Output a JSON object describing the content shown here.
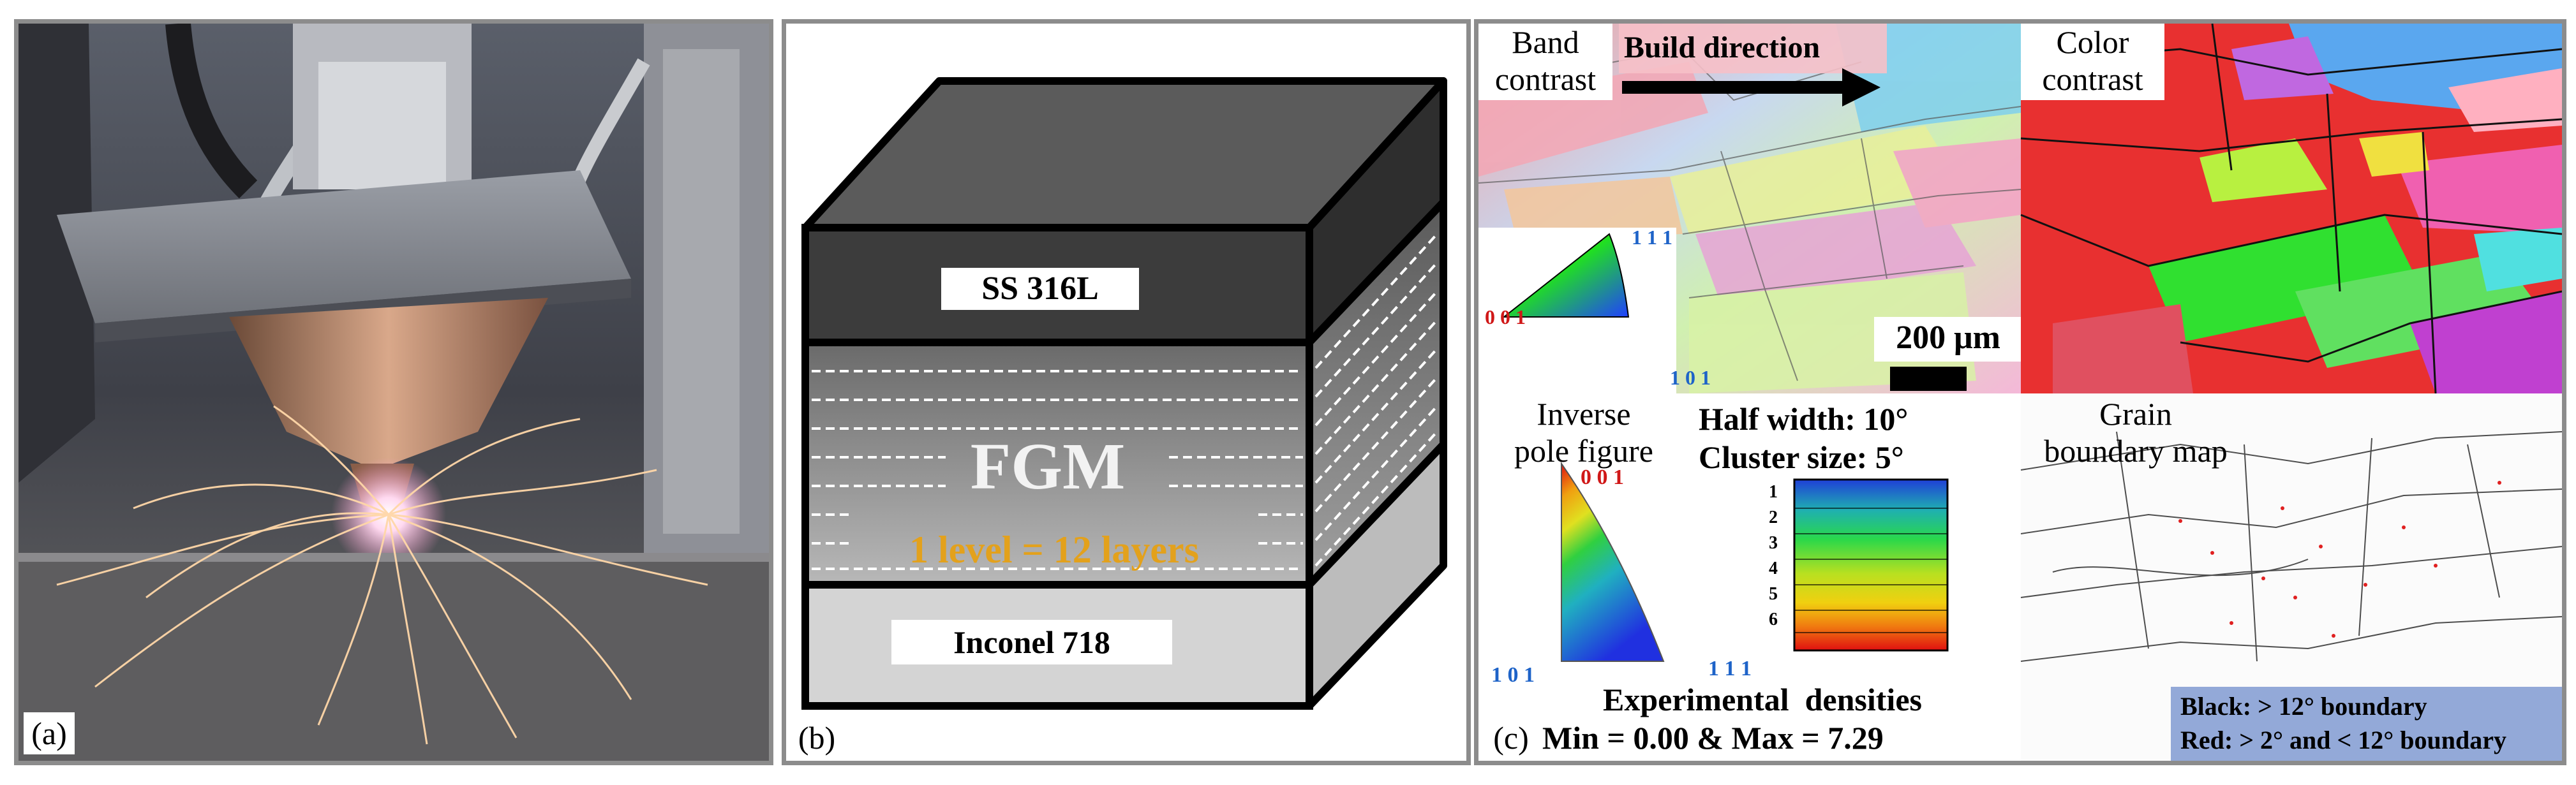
{
  "panel_a": {
    "label": "(a)"
  },
  "panel_b": {
    "label": "(b)",
    "top_layer": "SS 316L",
    "middle_layer": "FGM",
    "level_note": "1 level = 12 layers",
    "bottom_layer": "Inconel 718"
  },
  "panel_c": {
    "label": "(c)",
    "band_contrast_line1": "Band",
    "band_contrast_line2": "contrast",
    "build_direction": "Build direction",
    "color_contrast_line1": "Color",
    "color_contrast_line2": "contrast",
    "scale_bar": "200 μm",
    "ipf_key_top": "1 1 1",
    "ipf_key_left": "0 0 1",
    "ipf_key_bottom": "1 0 1",
    "inverse_pole_line1": "Inverse",
    "inverse_pole_line2": "pole figure",
    "half_width": "Half width: 10°",
    "cluster_size": "Cluster size: 5°",
    "density_top": "0 0 1",
    "density_left": "1 0 1",
    "density_right": "1 1 1",
    "colorbar_ticks": [
      "1",
      "2",
      "3",
      "4",
      "5",
      "6"
    ],
    "experimental_densities": "Experimental  densities",
    "min_max": "Min = 0.00 & Max = 7.29",
    "grain_line1": "Grain",
    "grain_line2": "boundary map",
    "black_legend": "Black: > 12° boundary",
    "red_legend": "Red: > 2° and < 12° boundary"
  }
}
